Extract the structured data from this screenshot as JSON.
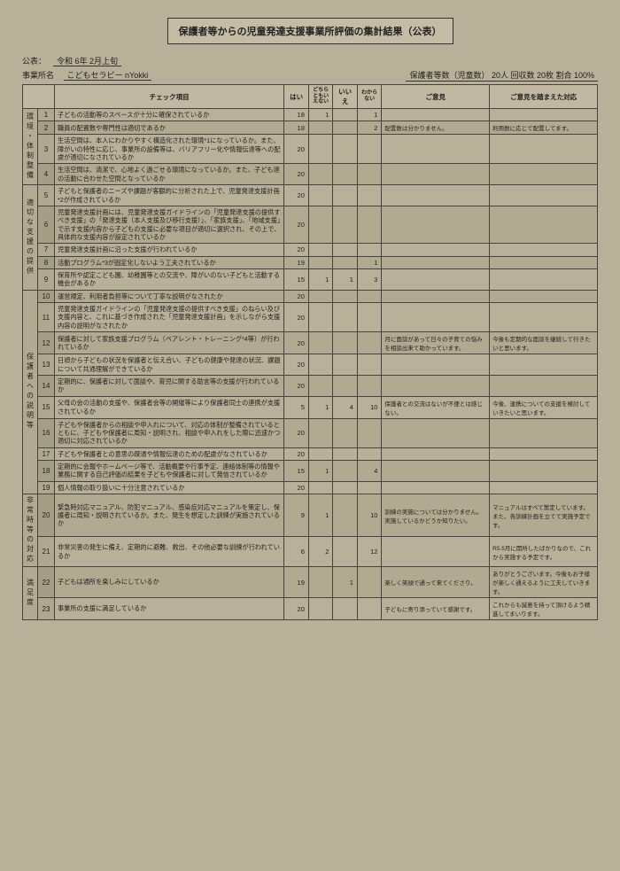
{
  "title": "保護者等からの児童発達支援事業所評価の集計結果（公表）",
  "pub_label": "公表：",
  "pub_date": "令和 6年 2月上旬",
  "biz_label": "事業所名",
  "biz_name": "こどもセラピー nYokki",
  "guardian_count": "保護者等数（児童数） 20人  回収数 20枚  割合  100%",
  "headers": {
    "item": "チェック項目",
    "yes": "はい",
    "mid": "どちらともいえない",
    "no": "いいえ",
    "dk": "わからない",
    "opinion": "ご意見",
    "response": "ご意見を踏まえた対応"
  },
  "cats": {
    "c1": "環境・体制整備",
    "c2": "適切な支援の提供",
    "c3": "保護者への説明等",
    "c4": "非常時等の対応",
    "c5": "満足度"
  },
  "rows": [
    {
      "n": "1",
      "item": "子どもの活動等のスペースが十分に確保されているか",
      "y": "18",
      "m": "1",
      "no": "",
      "dk": "1",
      "op": "",
      "rs": ""
    },
    {
      "n": "2",
      "item": "職員の配置数や専門性は適切であるか",
      "y": "18",
      "m": "",
      "no": "",
      "dk": "2",
      "op": "配置数は分かりません。",
      "rs": "利用数に応じて配置してます。"
    },
    {
      "n": "3",
      "item": "生活空間は、本人にわかりやすく構造化された環境*1になっているか。また、障がいの特性に応じ、事業所の設備等は、バリアフリー化や情報伝達等への配慮が適切になされているか",
      "y": "20",
      "m": "",
      "no": "",
      "dk": "",
      "op": "",
      "rs": ""
    },
    {
      "n": "4",
      "item": "生活空間は、清潔で、心地よく過ごせる環境になっているか。また、子ども達の活動に合わせた空間となっているか",
      "y": "20",
      "m": "",
      "no": "",
      "dk": "",
      "op": "",
      "rs": ""
    },
    {
      "n": "5",
      "item": "子どもと保護者のニーズや課題が客観的に分析された上で、児童発達支援計画*2が作成されているか",
      "y": "20",
      "m": "",
      "no": "",
      "dk": "",
      "op": "",
      "rs": ""
    },
    {
      "n": "6",
      "item": "児童発達支援計画には、児童発達支援ガイドラインの「児童発達支援の提供すべき支援」の「発達支援（本人支援及び移行支援）」、「家族支援」、「地域支援」で示す支援内容から子どもの支援に必要な項目が適切に選択され、その上で、具体的な支援内容が設定されているか",
      "y": "20",
      "m": "",
      "no": "",
      "dk": "",
      "op": "",
      "rs": ""
    },
    {
      "n": "7",
      "item": "児童発達支援計画に沿った支援が行われているか",
      "y": "20",
      "m": "",
      "no": "",
      "dk": "",
      "op": "",
      "rs": ""
    },
    {
      "n": "8",
      "item": "活動プログラム*3が固定化しないよう工夫されているか",
      "y": "19",
      "m": "",
      "no": "",
      "dk": "1",
      "op": "",
      "rs": ""
    },
    {
      "n": "9",
      "item": "保育所や認定こども園、幼稚園等との交流や、障がいのない子どもと活動する機会があるか",
      "y": "15",
      "m": "1",
      "no": "1",
      "dk": "3",
      "op": "",
      "rs": ""
    },
    {
      "n": "10",
      "item": "運営規定、利用者負担等について丁寧な説明がなされたか",
      "y": "20",
      "m": "",
      "no": "",
      "dk": "",
      "op": "",
      "rs": ""
    },
    {
      "n": "11",
      "item": "児童発達支援ガイドラインの「児童発達支援の提供すべき支援」のねらい及び支援内容と、これに基づき作成された「児童発達支援計画」を示しながら支援内容の説明がなされたか",
      "y": "20",
      "m": "",
      "no": "",
      "dk": "",
      "op": "",
      "rs": ""
    },
    {
      "n": "12",
      "item": "保護者に対して家族支援プログラム（ペアレント・トレーニング*4等）が行われているか",
      "y": "20",
      "m": "",
      "no": "",
      "dk": "",
      "op": "月に面談があって日々の子育ての悩みを相談出来て助かっています。",
      "rs": "今後も定期的な面談を継続して行きたいと思います。"
    },
    {
      "n": "13",
      "item": "日頃から子どもの状況を保護者と伝え合い、子どもの健康や発達の状況、課題について共通理解ができているか",
      "y": "20",
      "m": "",
      "no": "",
      "dk": "",
      "op": "",
      "rs": ""
    },
    {
      "n": "14",
      "item": "定期的に、保護者に対して面談や、育児に関する助言等の支援が行われているか",
      "y": "20",
      "m": "",
      "no": "",
      "dk": "",
      "op": "",
      "rs": ""
    },
    {
      "n": "15",
      "item": "父母の会の活動の支援や、保護者会等の開催等により保護者同士の連携が支援されているか",
      "y": "5",
      "m": "1",
      "no": "4",
      "dk": "10",
      "op": "保護者との交流はないが不便とは感じない。",
      "rs": "今後、連携についての支援を検討していきたいと思います。"
    },
    {
      "n": "16",
      "item": "子どもや保護者からの相談や申入れについて、対応の体制が整備されているとともに、子どもや保護者に周知・説明され、相談や申入れをした際に迅速かつ適切に対応されているか",
      "y": "20",
      "m": "",
      "no": "",
      "dk": "",
      "op": "",
      "rs": ""
    },
    {
      "n": "17",
      "item": "子どもや保護者との意思の疎通や情報伝達のための配慮がなされているか",
      "y": "20",
      "m": "",
      "no": "",
      "dk": "",
      "op": "",
      "rs": ""
    },
    {
      "n": "18",
      "item": "定期的に会報やホームページ等で、活動概要や行事予定、連絡体制等の情報や業務に関する自己評価の結果を子どもや保護者に対して発信されているか",
      "y": "15",
      "m": "1",
      "no": "",
      "dk": "4",
      "op": "",
      "rs": ""
    },
    {
      "n": "19",
      "item": "個人情報の取り扱いに十分注意されているか",
      "y": "20",
      "m": "",
      "no": "",
      "dk": "",
      "op": "",
      "rs": ""
    },
    {
      "n": "20",
      "item": "緊急時対応マニュアル、防犯マニュアル、感染症対応マニュアルを策定し、保護者に周知・説明されているか。また、発生を想定した訓練が実施されているか",
      "y": "9",
      "m": "1",
      "no": "",
      "dk": "10",
      "op": "訓練の実施については分かりません。実施しているかどうか知りたい。",
      "rs": "マニュアルはすべて策定しています。また、各訓練計画を立てて実施予定です。"
    },
    {
      "n": "21",
      "item": "非常災害の発生に備え、定期的に避難、救出、その他必要な訓練が行われているか",
      "y": "6",
      "m": "2",
      "no": "",
      "dk": "12",
      "op": "",
      "rs": "R5.5月に開所したばかりなので、これから実施する予定です。"
    },
    {
      "n": "22",
      "item": "子どもは通所を楽しみにしているか",
      "y": "19",
      "m": "",
      "no": "1",
      "dk": "",
      "op": "楽しく笑顔で通って来てくださり。",
      "rs": "ありがとうございます。今後もお子様が楽しく通えるように工夫していきます。"
    },
    {
      "n": "23",
      "item": "事業所の支援に満足しているか",
      "y": "20",
      "m": "",
      "no": "",
      "dk": "",
      "op": "子どもに寄り添っていて感謝です。",
      "rs": "これからも誠意を持って頂けるよう精進してまいります。"
    }
  ]
}
